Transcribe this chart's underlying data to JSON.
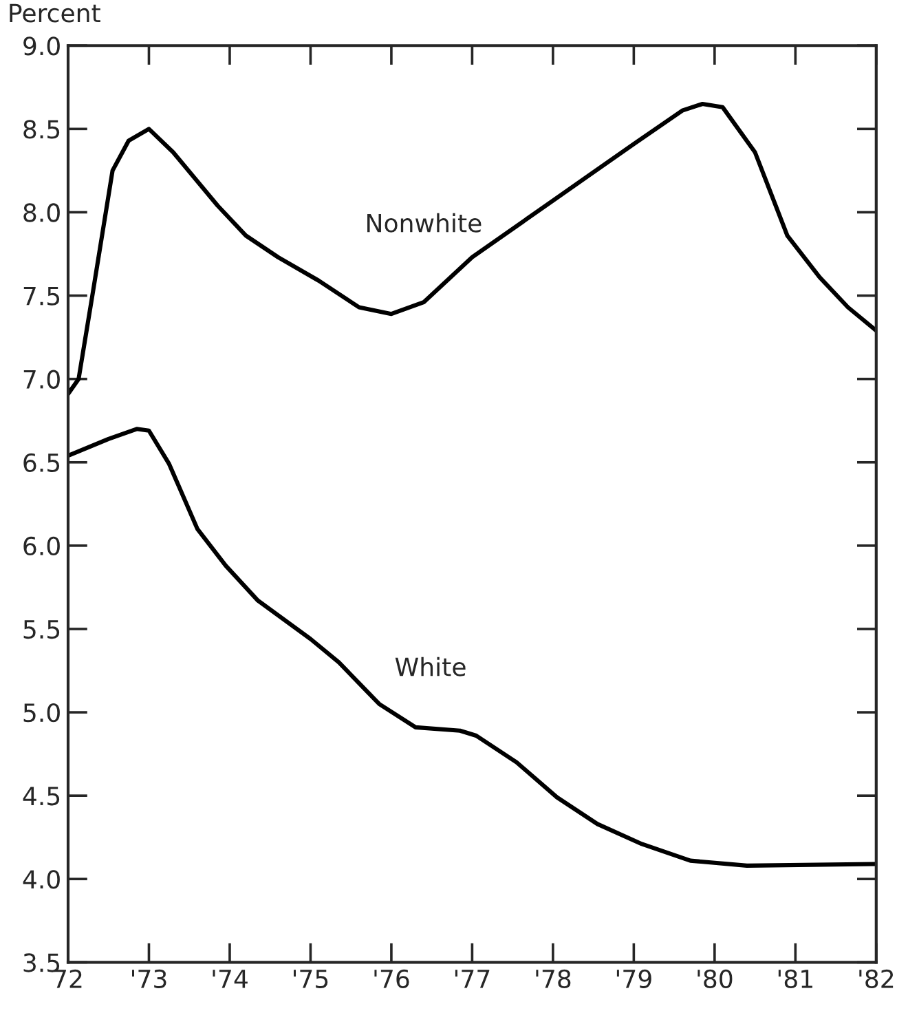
{
  "chart_data": {
    "type": "line",
    "ylabel": "Percent",
    "xlim": [
      1972,
      1982
    ],
    "xticks": [
      {
        "value": 1972,
        "label": "72"
      },
      {
        "value": 1973,
        "label": "'73"
      },
      {
        "value": 1974,
        "label": "'74"
      },
      {
        "value": 1975,
        "label": "'75"
      },
      {
        "value": 1976,
        "label": "'76"
      },
      {
        "value": 1977,
        "label": "'77"
      },
      {
        "value": 1978,
        "label": "'78"
      },
      {
        "value": 1979,
        "label": "'79"
      },
      {
        "value": 1980,
        "label": "'80"
      },
      {
        "value": 1981,
        "label": "'81"
      },
      {
        "value": 1982,
        "label": "'82"
      }
    ],
    "ylim": [
      3.5,
      9.0
    ],
    "yticks": [
      {
        "value": 3.5,
        "label": "3.5"
      },
      {
        "value": 4.0,
        "label": "4.0"
      },
      {
        "value": 4.5,
        "label": "4.5"
      },
      {
        "value": 5.0,
        "label": "5.0"
      },
      {
        "value": 5.5,
        "label": "5.5"
      },
      {
        "value": 6.0,
        "label": "6.0"
      },
      {
        "value": 6.5,
        "label": "6.5"
      },
      {
        "value": 7.0,
        "label": "7.0"
      },
      {
        "value": 7.5,
        "label": "7.5"
      },
      {
        "value": 8.0,
        "label": "8.0"
      },
      {
        "value": 8.5,
        "label": "8.5"
      },
      {
        "value": 9.0,
        "label": "9.0"
      }
    ],
    "grid": false,
    "legend": false,
    "marker": "none",
    "line_style": "solid",
    "series": [
      {
        "name": "Nonwhite",
        "color": "#000000",
        "x": [
          1972.0,
          1972.13,
          1972.3,
          1972.55,
          1972.75,
          1973.0,
          1973.3,
          1973.85,
          1974.2,
          1974.6,
          1975.1,
          1975.6,
          1976.0,
          1976.4,
          1977.0,
          1978.0,
          1979.0,
          1979.6,
          1979.85,
          1980.1,
          1980.5,
          1980.9,
          1981.3,
          1981.65,
          1982.0
        ],
        "values": [
          6.91,
          7.0,
          7.5,
          8.25,
          8.43,
          8.5,
          8.36,
          8.04,
          7.86,
          7.73,
          7.59,
          7.43,
          7.39,
          7.46,
          7.73,
          8.07,
          8.41,
          8.61,
          8.65,
          8.63,
          8.36,
          7.86,
          7.61,
          7.43,
          7.29
        ]
      },
      {
        "name": "White",
        "color": "#000000",
        "x": [
          1972.0,
          1972.5,
          1972.85,
          1973.0,
          1973.25,
          1973.6,
          1973.95,
          1974.35,
          1975.0,
          1975.35,
          1975.85,
          1976.3,
          1976.85,
          1977.05,
          1977.55,
          1978.05,
          1978.55,
          1979.1,
          1979.7,
          1980.4,
          1982.0
        ],
        "values": [
          6.54,
          6.64,
          6.7,
          6.69,
          6.49,
          6.1,
          5.88,
          5.67,
          5.44,
          5.3,
          5.05,
          4.91,
          4.89,
          4.86,
          4.7,
          4.49,
          4.33,
          4.21,
          4.11,
          4.08,
          4.09
        ]
      }
    ]
  }
}
